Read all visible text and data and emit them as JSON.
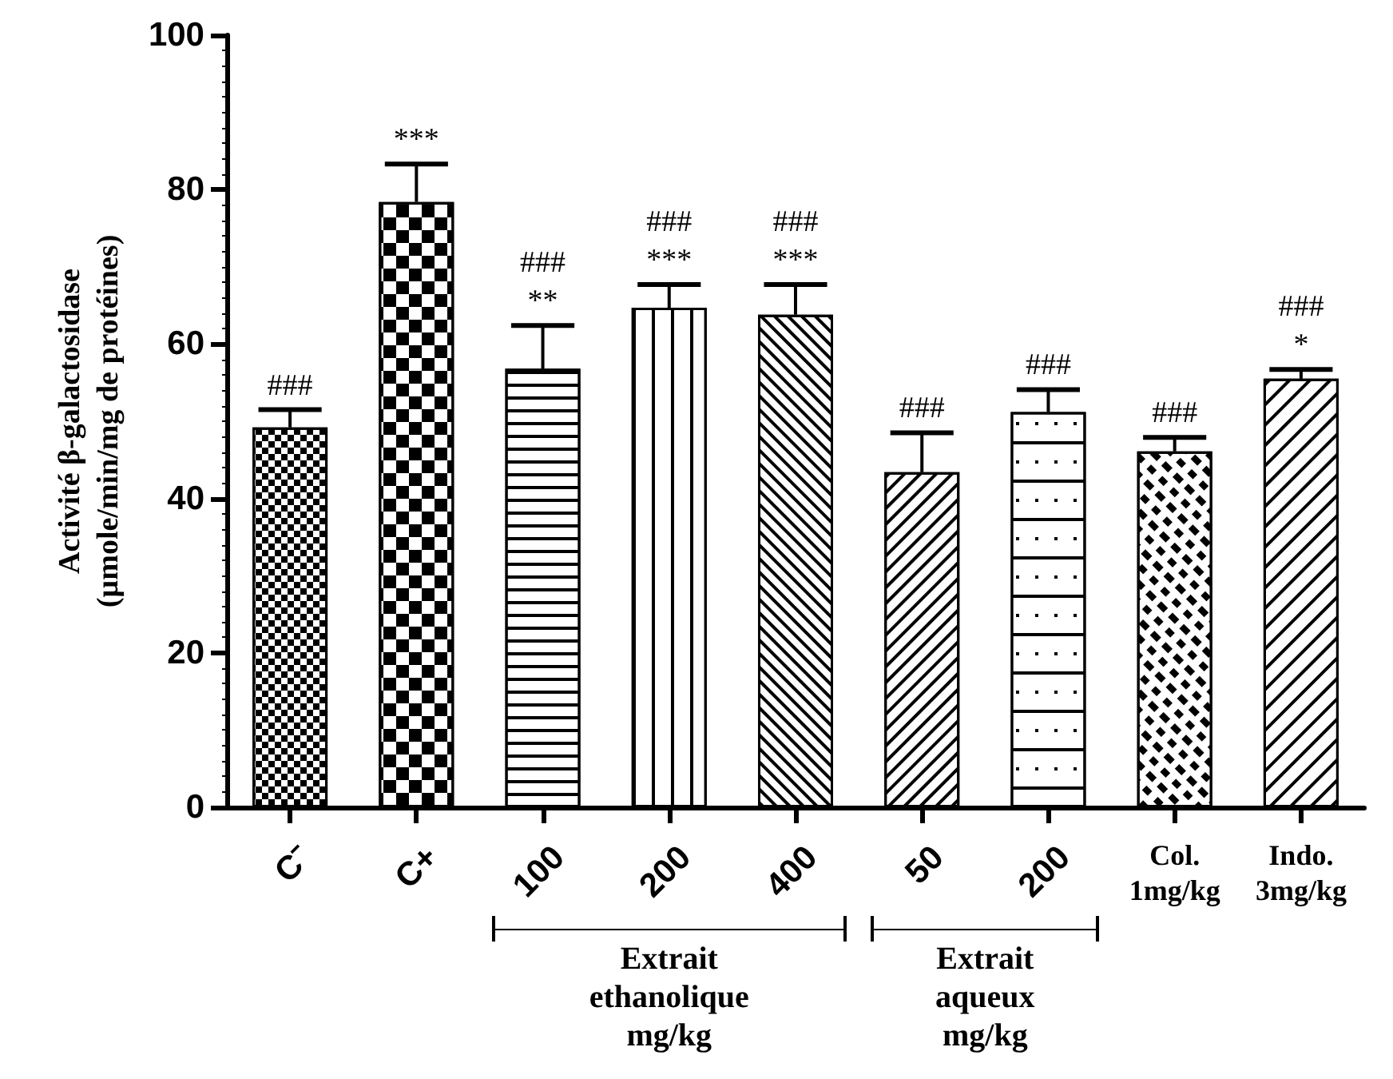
{
  "chart_data": {
    "type": "bar",
    "ylabel": "Activité β-galactosidase\n(µmole/min/mg de protéines)",
    "categories": [
      "C⁻",
      "C+",
      "100",
      "200",
      "400",
      "50",
      "200",
      "Col.\n1mg/kg",
      "Indo.\n3mg/kg"
    ],
    "values": [
      49.2,
      78.4,
      56.8,
      64.7,
      63.8,
      43.4,
      51.2,
      46.1,
      55.5
    ],
    "colors": [
      "#ffffff",
      "#ffffff",
      "#ffffff",
      "#ffffff",
      "#ffffff",
      "#ffffff",
      "#ffffff",
      "#ffffff",
      "#ffffff"
    ],
    "errors": [
      [
        49.2,
        51.5
      ],
      [
        78.4,
        83.3
      ],
      [
        56.8,
        62.4
      ],
      [
        64.7,
        67.7
      ],
      [
        63.8,
        67.7
      ],
      [
        43.4,
        48.5
      ],
      [
        51.2,
        54.1
      ],
      [
        46.1,
        47.9
      ],
      [
        55.5,
        56.7
      ]
    ],
    "value_labels": [
      "###",
      "***",
      "###\n**",
      "###\n***",
      "###\n***",
      "###",
      "###",
      "###",
      "###\n*"
    ],
    "annotations": [
      "Extrait\nethanolique\nmg/kg",
      "Extrait\naqueux\nmg/kg"
    ],
    "ylim": [
      0,
      100
    ],
    "yticks": [
      0,
      20,
      40,
      60,
      80,
      100
    ],
    "grid": false
  }
}
